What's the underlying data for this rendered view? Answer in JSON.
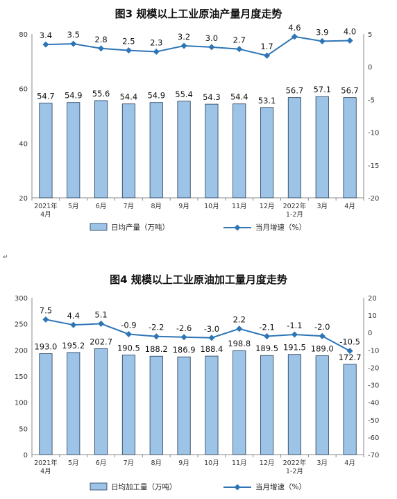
{
  "para_mark": "↵",
  "chart_data": [
    {
      "type": "bar",
      "title": "图3  规模以上工业原油产量月度走势",
      "categories": [
        [
          "2021年",
          "4月"
        ],
        [
          "5月"
        ],
        [
          "6月"
        ],
        [
          "7月"
        ],
        [
          "8月"
        ],
        [
          "9月"
        ],
        [
          "10月"
        ],
        [
          "11月"
        ],
        [
          "12月"
        ],
        [
          "2022年",
          "1-2月"
        ],
        [
          "3月"
        ],
        [
          "4月"
        ]
      ],
      "series": [
        {
          "name": "日均产量（万吨）",
          "type": "bar",
          "axis": "left",
          "values": [
            54.7,
            54.9,
            55.6,
            54.4,
            54.9,
            55.4,
            54.3,
            54.4,
            53.1,
            56.7,
            57.1,
            56.7
          ],
          "labels": [
            "54.7",
            "54.9",
            "55.6",
            "54.4",
            "54.9",
            "55.4",
            "54.3",
            "54.4",
            "53.1",
            "56.7",
            "57.1",
            "56.7"
          ]
        },
        {
          "name": "当月增速（%）",
          "type": "line",
          "axis": "right",
          "values": [
            3.4,
            3.5,
            2.8,
            2.5,
            2.3,
            3.2,
            3.0,
            2.7,
            1.7,
            4.6,
            3.9,
            4.0
          ],
          "labels": [
            "3.4",
            "3.5",
            "2.8",
            "2.5",
            "2.3",
            "3.2",
            "3.0",
            "2.7",
            "1.7",
            "4.6",
            "3.9",
            "4.0"
          ]
        }
      ],
      "ylim_left": [
        20,
        80
      ],
      "yticks_left": [
        20,
        40,
        60,
        80
      ],
      "ylim_right": [
        -20,
        5
      ],
      "yticks_right": [
        -20,
        -15,
        -10,
        -5,
        0,
        5
      ],
      "bar_color": "#9dc3e6",
      "line_color": "#2e75b6",
      "legend_position": "bottom",
      "grid": false
    },
    {
      "type": "bar",
      "title": "图4  规模以上工业原油加工量月度走势",
      "categories": [
        [
          "2021年",
          "4月"
        ],
        [
          "5月"
        ],
        [
          "6月"
        ],
        [
          "7月"
        ],
        [
          "8月"
        ],
        [
          "9月"
        ],
        [
          "10月"
        ],
        [
          "11月"
        ],
        [
          "12月"
        ],
        [
          "2022年",
          "1-2月"
        ],
        [
          "3月"
        ],
        [
          "4月"
        ]
      ],
      "series": [
        {
          "name": "日均加工量（万吨）",
          "type": "bar",
          "axis": "left",
          "values": [
            193.0,
            195.2,
            202.7,
            190.5,
            188.2,
            186.9,
            188.4,
            198.8,
            189.5,
            191.5,
            189.0,
            172.7
          ],
          "labels": [
            "193.0",
            "195.2",
            "202.7",
            "190.5",
            "188.2",
            "186.9",
            "188.4",
            "198.8",
            "189.5",
            "191.5",
            "189.0",
            "172.7"
          ]
        },
        {
          "name": "当月增速（%）",
          "type": "line",
          "axis": "right",
          "values": [
            7.5,
            4.4,
            5.1,
            -0.9,
            -2.2,
            -2.6,
            -3.0,
            2.2,
            -2.1,
            -1.1,
            -2.0,
            -10.5
          ],
          "labels": [
            "7.5",
            "4.4",
            "5.1",
            "-0.9",
            "-2.2",
            "-2.6",
            "-3.0",
            "2.2",
            "-2.1",
            "-1.1",
            "-2.0",
            "-10.5"
          ]
        }
      ],
      "ylim_left": [
        0,
        300
      ],
      "yticks_left": [
        0,
        50,
        100,
        150,
        200,
        250,
        300
      ],
      "ylim_right": [
        -70,
        20
      ],
      "yticks_right": [
        -70,
        -60,
        -50,
        -40,
        -30,
        -20,
        -10,
        0,
        10,
        20
      ],
      "bar_color": "#9dc3e6",
      "line_color": "#2e75b6",
      "legend_position": "bottom",
      "grid": false
    }
  ]
}
